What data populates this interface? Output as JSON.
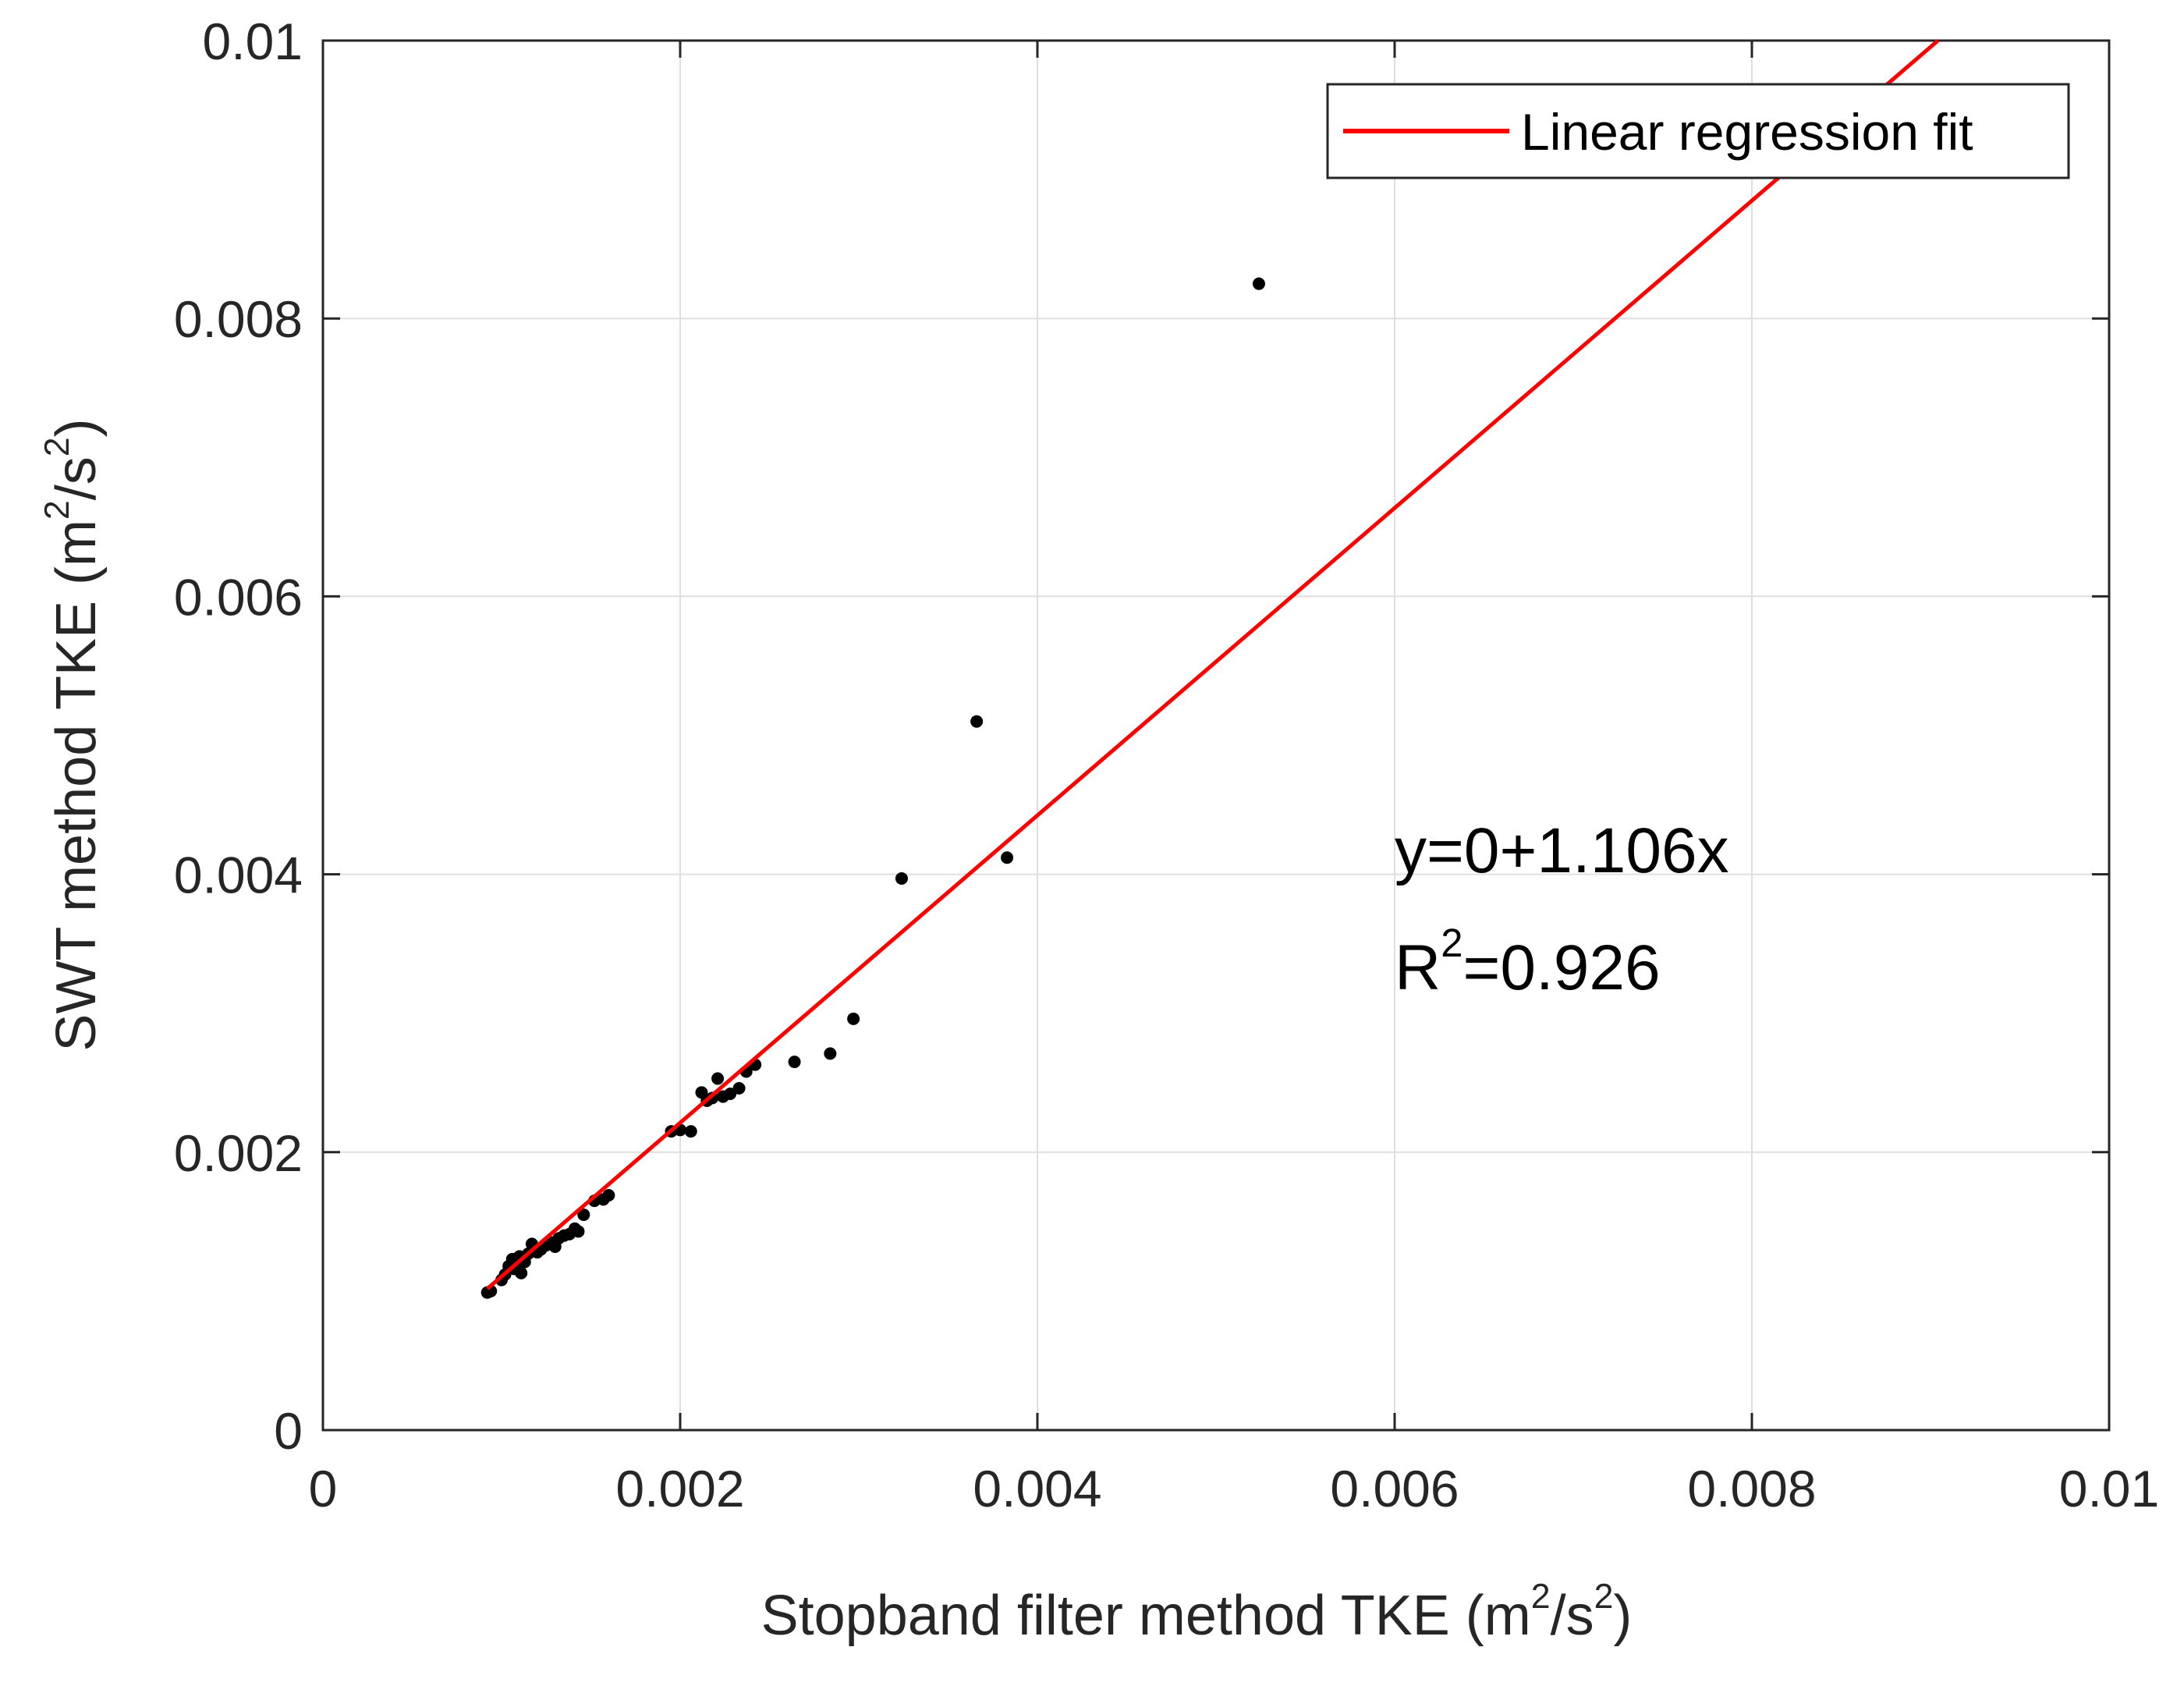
{
  "chart_data": {
    "type": "scatter",
    "xlabel_main": "Stopband filter method TKE (m",
    "xlabel_sup": "2",
    "xlabel_mid": "/s",
    "xlabel_sup2": "2",
    "xlabel_end": ")",
    "ylabel_main": "SWT method TKE (m",
    "ylabel_sup": "2",
    "ylabel_mid": "/s",
    "ylabel_sup2": "2",
    "ylabel_end": ")",
    "xlim": [
      0,
      0.01
    ],
    "ylim": [
      0,
      0.01
    ],
    "xticks": [
      0,
      0.002,
      0.004,
      0.006,
      0.008,
      0.01
    ],
    "xtick_labels": [
      "0",
      "0.002",
      "0.004",
      "0.006",
      "0.008",
      "0.01"
    ],
    "yticks": [
      0,
      0.002,
      0.004,
      0.006,
      0.008,
      0.01
    ],
    "ytick_labels": [
      "0",
      "0.002",
      "0.004",
      "0.006",
      "0.008",
      "0.01"
    ],
    "grid": true,
    "legend": {
      "position": "top-right",
      "entries": [
        "Linear regression fit"
      ]
    },
    "fit": {
      "name": "Linear regression fit",
      "intercept": 0,
      "slope": 1.106,
      "x_range": [
        0.00092,
        0.0091
      ],
      "color": "#ff0000"
    },
    "annotation_equation": "y=0+1.106x",
    "annotation_r2_base": "R",
    "annotation_r2_sup": "2",
    "annotation_r2_value": "=0.926",
    "marker_color": "#000000",
    "series": [
      {
        "name": "data",
        "x": [
          0.00092,
          0.00094,
          0.001,
          0.00102,
          0.00104,
          0.00106,
          0.00107,
          0.00109,
          0.0011,
          0.00111,
          0.00113,
          0.00115,
          0.00117,
          0.0012,
          0.00122,
          0.00125,
          0.00128,
          0.0013,
          0.00132,
          0.00135,
          0.00138,
          0.00141,
          0.00143,
          0.00146,
          0.00152,
          0.00157,
          0.0016,
          0.00195,
          0.002,
          0.00206,
          0.00212,
          0.00215,
          0.00218,
          0.00221,
          0.00224,
          0.00228,
          0.00233,
          0.00237,
          0.00242,
          0.00264,
          0.00284,
          0.00297,
          0.00324,
          0.00366,
          0.00383,
          0.00524
        ],
        "y": [
          0.00099,
          0.001,
          0.00108,
          0.00112,
          0.00118,
          0.00123,
          0.00116,
          0.0012,
          0.00125,
          0.00113,
          0.00121,
          0.00127,
          0.00134,
          0.00128,
          0.0013,
          0.00133,
          0.00135,
          0.00132,
          0.00138,
          0.0014,
          0.00141,
          0.00145,
          0.00143,
          0.00155,
          0.00165,
          0.00166,
          0.00169,
          0.00215,
          0.00216,
          0.00215,
          0.00243,
          0.00237,
          0.00239,
          0.00253,
          0.0024,
          0.00242,
          0.00246,
          0.00258,
          0.00263,
          0.00265,
          0.00271,
          0.00296,
          0.00397,
          0.0051,
          0.00412,
          0.00825
        ]
      }
    ]
  }
}
